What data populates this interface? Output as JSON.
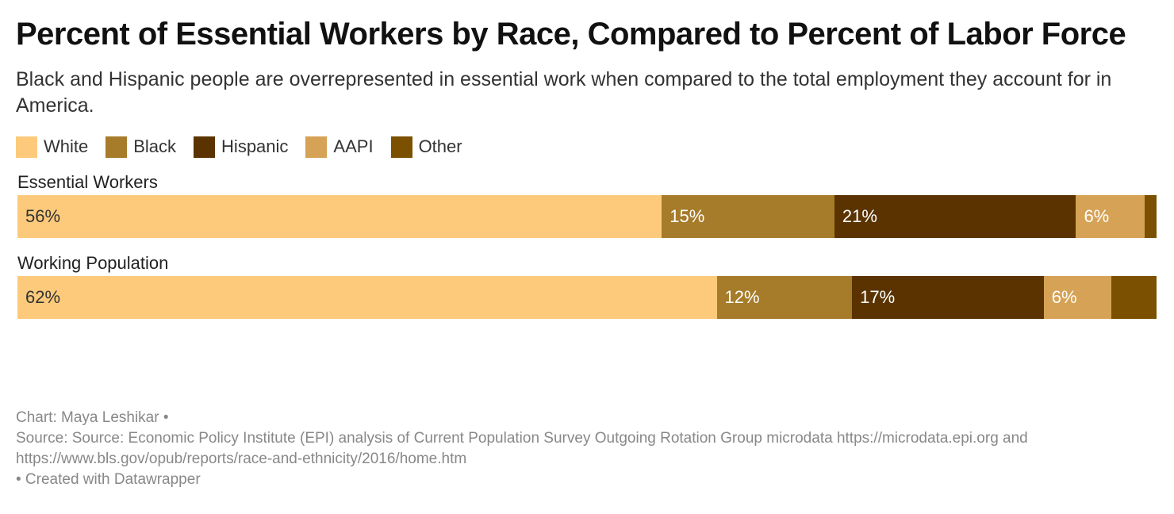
{
  "header": {
    "title": "Percent of Essential Workers by Race, Compared to Percent of Labor Force",
    "subtitle": "Black and Hispanic people are overrepresented in essential work when compared to the total employment they account for in America."
  },
  "chart_data": {
    "type": "bar",
    "orientation": "horizontal-stacked-100",
    "title": "Percent of Essential Workers by Race, Compared to Percent of Labor Force",
    "categories": [
      "Essential Workers",
      "Working Population"
    ],
    "series": [
      {
        "name": "White",
        "color": "#fdca7b",
        "text_color": "#333333",
        "values": [
          56,
          62
        ],
        "labels": [
          "56%",
          "62%"
        ]
      },
      {
        "name": "Black",
        "color": "#a67b2a",
        "text_color": "#ffffff",
        "values": [
          15,
          12
        ],
        "labels": [
          "15%",
          "12%"
        ]
      },
      {
        "name": "Hispanic",
        "color": "#5a3300",
        "text_color": "#ffffff",
        "values": [
          21,
          17
        ],
        "labels": [
          "21%",
          "17%"
        ]
      },
      {
        "name": "AAPI",
        "color": "#d6a255",
        "text_color": "#ffffff",
        "values": [
          6,
          6
        ],
        "labels": [
          "6%",
          "6%"
        ]
      },
      {
        "name": "Other",
        "color": "#7b5000",
        "text_color": "#ffffff",
        "values": [
          1,
          4
        ],
        "labels": [
          "",
          ""
        ]
      }
    ],
    "xlim": [
      0,
      100
    ],
    "legend_position": "top-left",
    "grid": false
  },
  "footer": {
    "credit": "Chart: Maya Leshikar •",
    "source": "Source: Source: Economic Policy Institute (EPI) analysis of Current Population Survey Outgoing Rotation Group microdata https://microdata.epi.org and https://www.bls.gov/opub/reports/race-and-ethnicity/2016/home.htm",
    "created": " • Created with Datawrapper"
  }
}
